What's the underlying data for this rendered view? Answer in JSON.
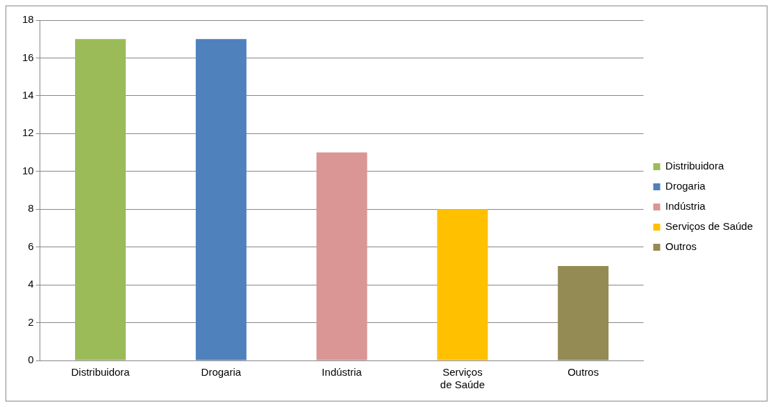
{
  "chart_data": {
    "type": "bar",
    "categories": [
      "Distribuidora",
      "Drogaria",
      "Indústria",
      "Serviços de Saúde",
      "Outros"
    ],
    "series": [
      {
        "name": "Distribuidora",
        "color": "#9bbb59",
        "values": [
          17,
          null,
          null,
          null,
          null
        ]
      },
      {
        "name": "Drogaria",
        "color": "#4f81bd",
        "values": [
          null,
          17,
          null,
          null,
          null
        ]
      },
      {
        "name": "Indústria",
        "color": "#d99694",
        "values": [
          null,
          null,
          11,
          null,
          null
        ]
      },
      {
        "name": "Serviços de Saúde",
        "color": "#ffc000",
        "values": [
          null,
          null,
          null,
          8,
          null
        ]
      },
      {
        "name": "Outros",
        "color": "#948a54",
        "values": [
          null,
          null,
          null,
          null,
          5
        ]
      }
    ],
    "ylim": [
      0,
      18
    ],
    "yticks": [
      0,
      2,
      4,
      6,
      8,
      10,
      12,
      14,
      16,
      18
    ],
    "grid": "y",
    "legend": "right"
  }
}
